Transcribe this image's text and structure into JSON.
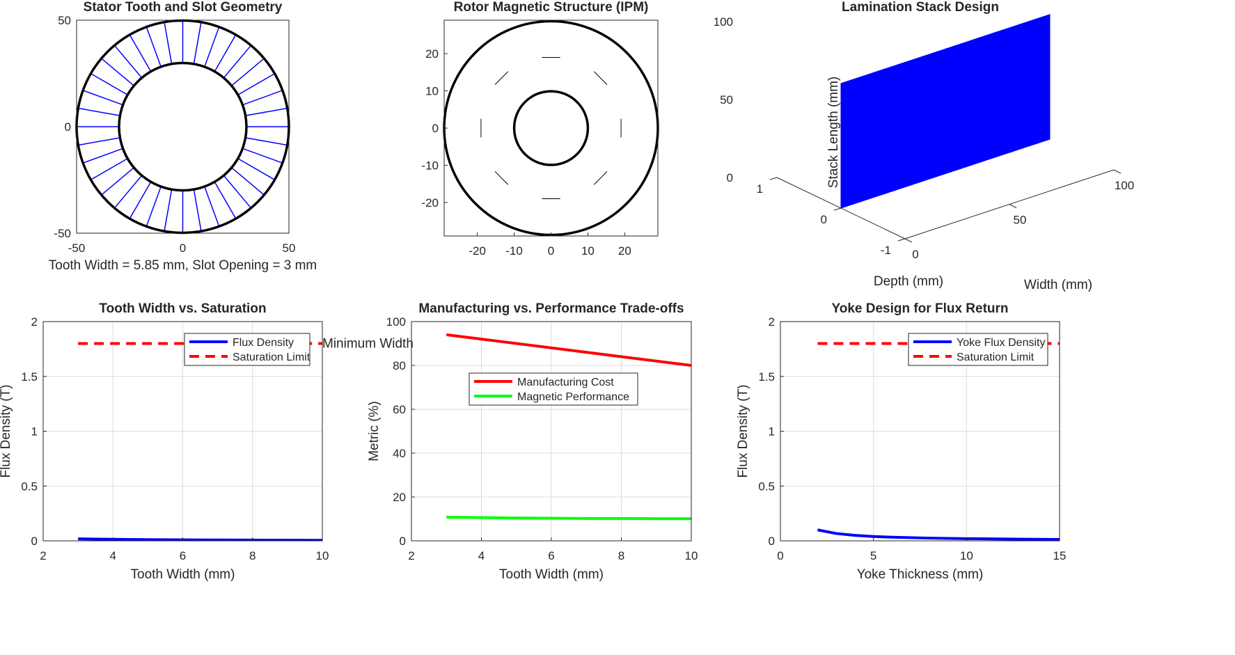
{
  "colors": {
    "blue": "#0000ff",
    "red": "#ff0000",
    "green": "#00ff00",
    "black": "#000000",
    "axis": "#262626"
  },
  "chart_data": [
    {
      "id": "stator",
      "type": "diagram",
      "title": "Stator Tooth and Slot Geometry",
      "xlabel": "Tooth Width = 5.85 mm, Slot Opening = 3 mm",
      "xlim": [
        -50,
        50
      ],
      "ylim": [
        -50,
        50
      ],
      "xticks": [
        -50,
        0,
        50
      ],
      "yticks": [
        -50,
        0,
        50
      ],
      "outer_radius": 50,
      "inner_radius": 30,
      "slots": 36
    },
    {
      "id": "rotor",
      "type": "diagram",
      "title": "Rotor Magnetic Structure (IPM)",
      "xlim": [
        -29,
        29
      ],
      "ylim": [
        -29,
        29
      ],
      "xticks": [
        -20,
        -10,
        0,
        10,
        20
      ],
      "yticks": [
        -20,
        -10,
        0,
        10,
        20
      ],
      "outer_radius": 29,
      "shaft_radius": 10,
      "magnets": {
        "count": 8,
        "radius": 19,
        "length": 5
      }
    },
    {
      "id": "stack",
      "type": "surface-3d",
      "title": "Lamination Stack Design",
      "xlabel": "Width (mm)",
      "ylabel": "Depth (mm)",
      "zlabel": "Stack Length (mm)",
      "xticks": [
        0,
        50,
        100
      ],
      "yticks": [
        -1,
        0,
        1
      ],
      "zticks": [
        0,
        50,
        100
      ],
      "width": 100,
      "stack_length": 80
    },
    {
      "id": "tooth-sat",
      "type": "line",
      "title": "Tooth Width vs. Saturation",
      "xlabel": "Tooth Width (mm)",
      "ylabel": "Flux Density (T)",
      "xlim": [
        2,
        10
      ],
      "ylim": [
        0,
        2
      ],
      "xticks": [
        2,
        4,
        6,
        8,
        10
      ],
      "yticks": [
        0,
        0.5,
        1,
        1.5,
        2
      ],
      "grid": true,
      "legend_position": "top-right",
      "series": [
        {
          "name": "Flux Density",
          "color": "#0000ff",
          "dash": false,
          "x": [
            3,
            4,
            5,
            6,
            7,
            8,
            9,
            10
          ],
          "y": [
            0.018,
            0.014,
            0.011,
            0.009,
            0.008,
            0.007,
            0.006,
            0.005
          ]
        },
        {
          "name": "Saturation Limit",
          "color": "#ff0000",
          "dash": true,
          "x": [
            3,
            10
          ],
          "y": [
            1.8,
            1.8
          ]
        }
      ],
      "annotation": {
        "text": "Minimum Width",
        "x": 10,
        "y": 1.8
      }
    },
    {
      "id": "tradeoff",
      "type": "line",
      "title": "Manufacturing vs. Performance Trade-offs",
      "xlabel": "Tooth Width (mm)",
      "ylabel": "Metric (%)",
      "xlim": [
        2,
        10
      ],
      "ylim": [
        0,
        100
      ],
      "xticks": [
        2,
        4,
        6,
        8,
        10
      ],
      "yticks": [
        0,
        20,
        40,
        60,
        80,
        100
      ],
      "grid": true,
      "legend_position": "center",
      "series": [
        {
          "name": "Manufacturing Cost",
          "color": "#ff0000",
          "dash": false,
          "x": [
            3,
            10
          ],
          "y": [
            94,
            80
          ]
        },
        {
          "name": "Magnetic Performance",
          "color": "#00ff00",
          "dash": false,
          "x": [
            3,
            4,
            5,
            6,
            7,
            8,
            9,
            10
          ],
          "y": [
            10.8,
            10.6,
            10.4,
            10.3,
            10.2,
            10.2,
            10.1,
            10.1
          ]
        }
      ]
    },
    {
      "id": "yoke",
      "type": "line",
      "title": "Yoke Design for Flux Return",
      "xlabel": "Yoke Thickness (mm)",
      "ylabel": "Flux Density (T)",
      "xlim": [
        0,
        15
      ],
      "ylim": [
        0,
        2
      ],
      "xticks": [
        0,
        5,
        10,
        15
      ],
      "yticks": [
        0,
        0.5,
        1,
        1.5,
        2
      ],
      "grid": true,
      "legend_position": "top-right",
      "series": [
        {
          "name": "Yoke Flux Density",
          "color": "#0000ff",
          "dash": false,
          "x": [
            2,
            3,
            4,
            5,
            6,
            8,
            10,
            12,
            15
          ],
          "y": [
            0.1,
            0.067,
            0.05,
            0.04,
            0.033,
            0.025,
            0.02,
            0.017,
            0.013
          ]
        },
        {
          "name": "Saturation Limit",
          "color": "#ff0000",
          "dash": true,
          "x": [
            2,
            15
          ],
          "y": [
            1.8,
            1.8
          ]
        }
      ]
    }
  ]
}
